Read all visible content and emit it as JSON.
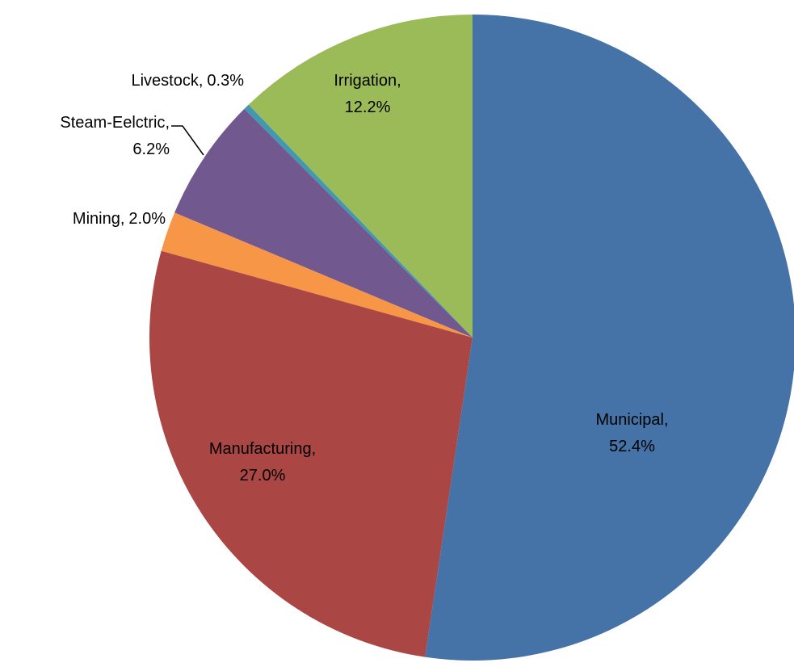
{
  "chart_data": {
    "type": "pie",
    "categories": [
      "Municipal",
      "Manufacturing",
      "Mining",
      "Steam-Eelctric",
      "Livestock",
      "Irrigation"
    ],
    "values": [
      52.4,
      27.0,
      2.0,
      6.2,
      0.3,
      12.2
    ],
    "value_labels": [
      "52.4%",
      "27.0%",
      "2.0%",
      "6.2%",
      "0.3%",
      "12.2%"
    ],
    "colors": [
      "#4572a7",
      "#aa4643",
      "#f79646",
      "#71588f",
      "#4198af",
      "#9bbb59"
    ]
  }
}
